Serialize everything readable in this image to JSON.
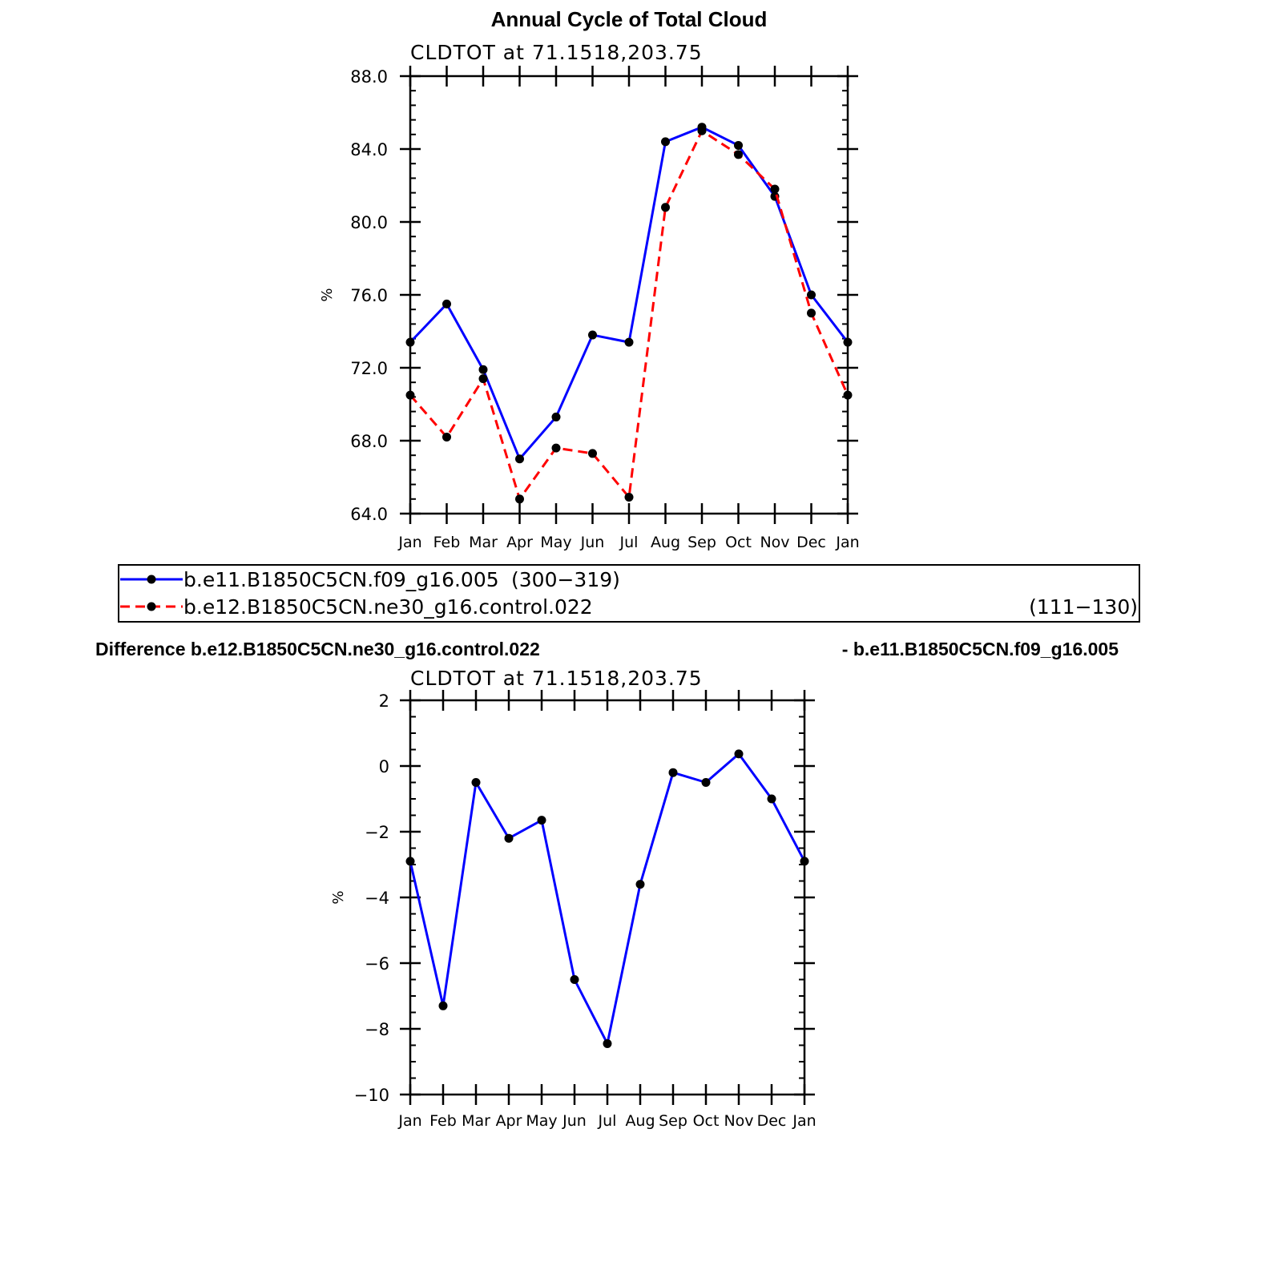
{
  "chart_data": [
    {
      "type": "line",
      "title": "Annual Cycle of Total Cloud",
      "subtitle": "CLDTOT at 71.1518,203.75",
      "xlabel": "",
      "ylabel": "%",
      "categories": [
        "Jan",
        "Feb",
        "Mar",
        "Apr",
        "May",
        "Jun",
        "Jul",
        "Aug",
        "Sep",
        "Oct",
        "Nov",
        "Dec",
        "Jan"
      ],
      "ylim": [
        64.0,
        88.0
      ],
      "yticks": [
        "88.0",
        "84.0",
        "80.0",
        "76.0",
        "72.0",
        "68.0",
        "64.0"
      ],
      "series": [
        {
          "name": "b.e11.B1850C5CN.f09_g16.005",
          "years": "(300−319)",
          "color": "#0000ff",
          "dash": "solid",
          "values": [
            73.4,
            75.5,
            71.9,
            67.0,
            69.3,
            73.8,
            73.4,
            84.4,
            85.2,
            84.2,
            81.4,
            76.0,
            73.4
          ]
        },
        {
          "name": "b.e12.B1850C5CN.ne30_g16.control.022",
          "years": "(111−130)",
          "color": "#ff0000",
          "dash": "dashed",
          "values": [
            70.5,
            68.2,
            71.4,
            64.8,
            67.6,
            67.3,
            64.9,
            80.8,
            85.0,
            83.7,
            81.8,
            75.0,
            70.5
          ]
        }
      ]
    },
    {
      "type": "line",
      "title": "Difference b.e12.B1850C5CN.ne30_g16.control.022",
      "title_right": "- b.e11.B1850C5CN.f09_g16.005",
      "subtitle": "CLDTOT at 71.1518,203.75",
      "xlabel": "",
      "ylabel": "%",
      "categories": [
        "Jan",
        "Feb",
        "Mar",
        "Apr",
        "May",
        "Jun",
        "Jul",
        "Aug",
        "Sep",
        "Oct",
        "Nov",
        "Dec",
        "Jan"
      ],
      "ylim": [
        -10,
        2
      ],
      "yticks": [
        "2",
        "0",
        "−2",
        "−4",
        "−6",
        "−8",
        "−10"
      ],
      "series": [
        {
          "color": "#0000ff",
          "dash": "solid",
          "values": [
            -2.9,
            -7.3,
            -0.5,
            -2.2,
            -1.65,
            -6.5,
            -8.45,
            -3.6,
            -0.2,
            -0.5,
            0.37,
            -1.0,
            -2.9
          ]
        }
      ]
    }
  ]
}
